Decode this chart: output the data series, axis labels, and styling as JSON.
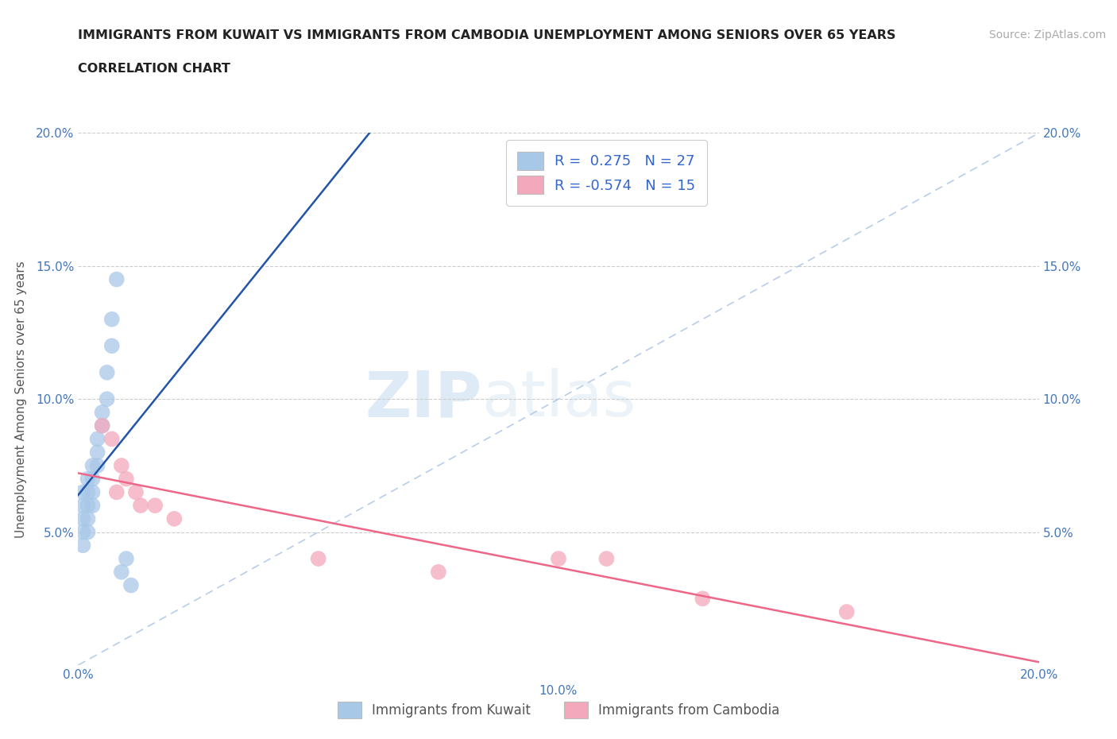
{
  "title_line1": "IMMIGRANTS FROM KUWAIT VS IMMIGRANTS FROM CAMBODIA UNEMPLOYMENT AMONG SENIORS OVER 65 YEARS",
  "title_line2": "CORRELATION CHART",
  "source_text": "Source: ZipAtlas.com",
  "ylabel": "Unemployment Among Seniors over 65 years",
  "watermark_ZIP": "ZIP",
  "watermark_atlas": "atlas",
  "xlim": [
    0.0,
    0.2
  ],
  "ylim": [
    0.0,
    0.2
  ],
  "kuwait_color": "#a8c8e8",
  "cambodia_color": "#f4a8bc",
  "kuwait_line_color": "#2255aa",
  "cambodia_line_color": "#ee6688",
  "dashed_line_color": "#b0c8e8",
  "R_kuwait": 0.275,
  "N_kuwait": 27,
  "R_cambodia": -0.574,
  "N_cambodia": 15,
  "legend_label_kuwait": "Immigrants from Kuwait",
  "legend_label_cambodia": "Immigrants from Cambodia",
  "kuwait_x": [
    0.001,
    0.001,
    0.001,
    0.001,
    0.001,
    0.002,
    0.002,
    0.002,
    0.002,
    0.002,
    0.003,
    0.003,
    0.003,
    0.003,
    0.004,
    0.004,
    0.004,
    0.005,
    0.005,
    0.006,
    0.006,
    0.007,
    0.007,
    0.008,
    0.009,
    0.01,
    0.011
  ],
  "kuwait_y": [
    0.055,
    0.06,
    0.065,
    0.05,
    0.045,
    0.06,
    0.065,
    0.07,
    0.055,
    0.05,
    0.065,
    0.07,
    0.075,
    0.06,
    0.08,
    0.085,
    0.075,
    0.09,
    0.095,
    0.1,
    0.11,
    0.12,
    0.13,
    0.145,
    0.035,
    0.04,
    0.03
  ],
  "cambodia_x": [
    0.005,
    0.007,
    0.008,
    0.009,
    0.01,
    0.012,
    0.013,
    0.016,
    0.02,
    0.05,
    0.075,
    0.1,
    0.11,
    0.13,
    0.16
  ],
  "cambodia_y": [
    0.09,
    0.085,
    0.065,
    0.075,
    0.07,
    0.065,
    0.06,
    0.06,
    0.055,
    0.04,
    0.035,
    0.04,
    0.04,
    0.025,
    0.02
  ]
}
